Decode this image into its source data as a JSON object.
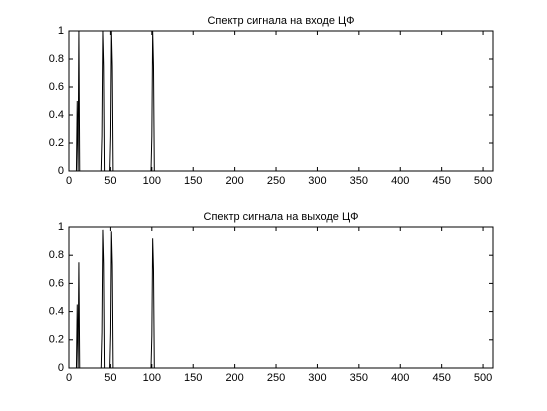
{
  "chart_data": [
    {
      "type": "line",
      "title": "Спектр сигнала на входе ЦФ",
      "x": [
        0,
        9,
        10,
        11,
        12,
        13,
        39,
        40,
        41,
        42,
        43,
        49,
        50,
        51,
        52,
        53,
        99,
        100,
        101,
        102,
        103,
        511
      ],
      "values": [
        0,
        0,
        0.5,
        0,
        1,
        0,
        0,
        0.25,
        1,
        0.75,
        0,
        0,
        0.25,
        1,
        0.75,
        0,
        0,
        0.25,
        1,
        0.75,
        0,
        0
      ],
      "color": "#000000",
      "xlim": [
        0,
        512
      ],
      "xticks": [
        0,
        50,
        100,
        150,
        200,
        250,
        300,
        350,
        400,
        450,
        500
      ],
      "ylim": [
        0,
        1
      ],
      "yticks": [
        0,
        0.2,
        0.4,
        0.6,
        0.8,
        1
      ],
      "grid": false
    },
    {
      "type": "line",
      "title": "Спектр сигнала на выходе ЦФ",
      "x": [
        0,
        9,
        10,
        11,
        12,
        13,
        39,
        40,
        41,
        42,
        43,
        49,
        50,
        51,
        52,
        53,
        99,
        100,
        101,
        102,
        103,
        511
      ],
      "values": [
        0,
        0,
        0.45,
        0,
        0.75,
        0,
        0,
        0.25,
        0.98,
        0.74,
        0,
        0,
        0.25,
        0.97,
        0.73,
        0,
        0,
        0.23,
        0.92,
        0.7,
        0,
        0
      ],
      "color": "#000000",
      "xlim": [
        0,
        512
      ],
      "xticks": [
        0,
        50,
        100,
        150,
        200,
        250,
        300,
        350,
        400,
        450,
        500
      ],
      "ylim": [
        0,
        1
      ],
      "yticks": [
        0,
        0.2,
        0.4,
        0.6,
        0.8,
        1
      ],
      "grid": false
    }
  ]
}
